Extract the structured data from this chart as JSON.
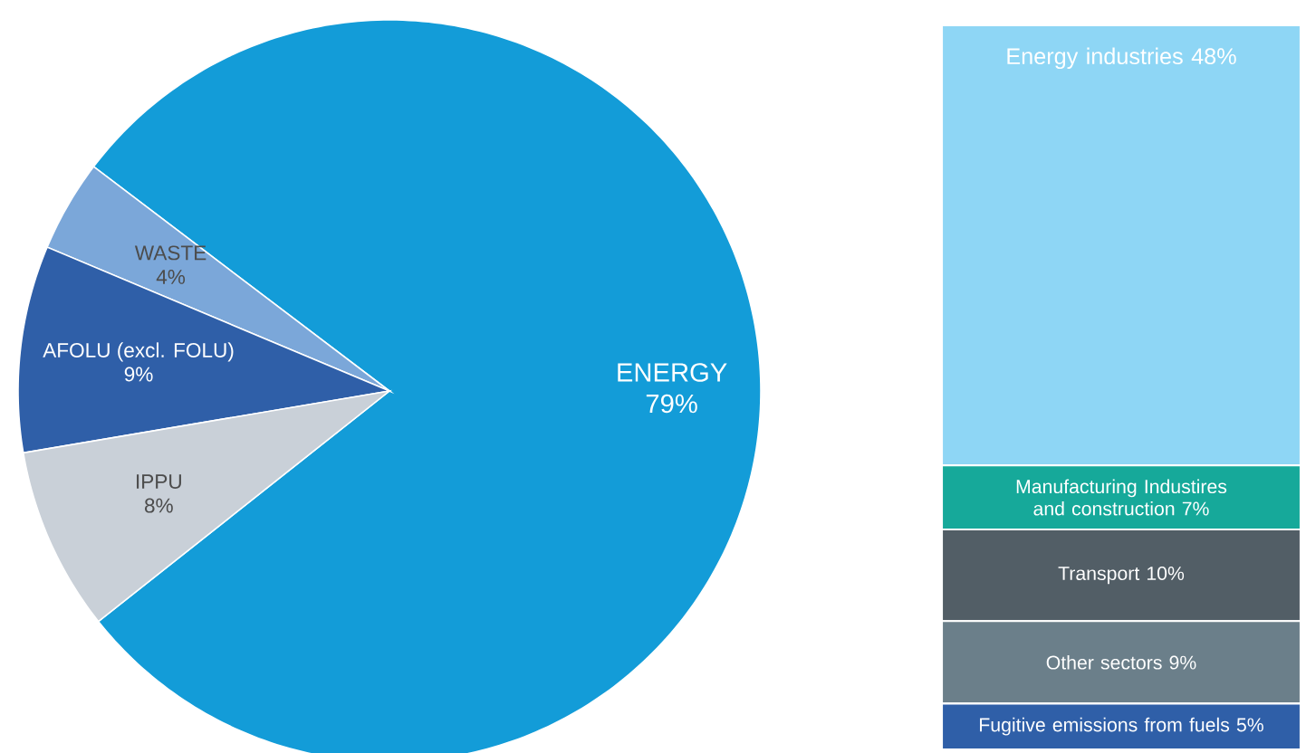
{
  "chart_data": [
    {
      "type": "pie",
      "categories": [
        "ENERGY",
        "WASTE",
        "AFOLU (excl. FOLU)",
        "IPPU"
      ],
      "values": [
        79,
        4,
        9,
        8
      ],
      "colors": [
        "#139cd8",
        "#7ba7d9",
        "#2f5fa8",
        "#c9d0d8"
      ],
      "value_labels": [
        "79%",
        "4%",
        "9%",
        "8%"
      ]
    },
    {
      "type": "bar",
      "stacked": true,
      "categories": [
        null
      ],
      "series": [
        {
          "name": "Fugitive emissions from fuels",
          "color": "#2f5fa8",
          "values": [
            5
          ],
          "value_labels": [
            "5%"
          ]
        },
        {
          "name": "Other sectors",
          "color": "#6b7f8a",
          "values": [
            9
          ],
          "value_labels": [
            "9%"
          ]
        },
        {
          "name": "Transport",
          "color": "#525e66",
          "values": [
            10
          ],
          "value_labels": [
            "10%"
          ]
        },
        {
          "name": "Manufacturing Industires and construction",
          "color": "#16a99a",
          "values": [
            7
          ],
          "value_labels": [
            "7%"
          ]
        },
        {
          "name": "Energy industries",
          "color": "#8ed6f5",
          "values": [
            48
          ],
          "value_labels": [
            "48%"
          ]
        }
      ]
    }
  ]
}
